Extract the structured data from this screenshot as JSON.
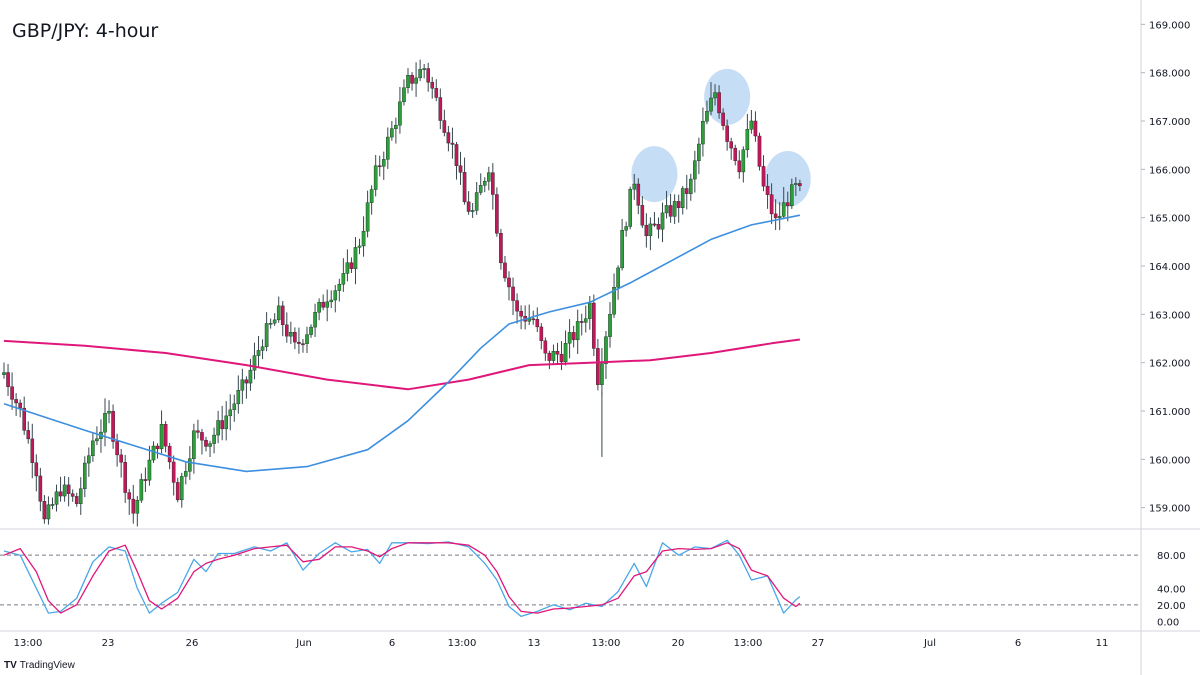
{
  "title": "GBP/JPY: 4-hour",
  "brand": {
    "logo": "TV",
    "name": "TradingView"
  },
  "colors": {
    "up": "#26a69a",
    "upBody": "#2e9e3c",
    "down": "#c2185b",
    "wick": "#37474f",
    "sma_fast": "#3d8fe0",
    "sma_slow": "#e0177a",
    "stoch_k": "#4aa8e8",
    "stoch_d": "#e0177a",
    "highlight": "#bcd7f5",
    "grid": "#e0e3eb"
  },
  "chart_data": [
    {
      "type": "candlestick",
      "title": "GBP/JPY: 4-hour",
      "ylim": [
        158.6,
        169.4
      ],
      "y_ticks": [
        159.0,
        160.0,
        161.0,
        162.0,
        163.0,
        164.0,
        165.0,
        166.0,
        167.0,
        168.0,
        169.0
      ],
      "y_tick_labels": [
        "159.000",
        "160.000",
        "161.000",
        "162.000",
        "163.000",
        "164.000",
        "165.000",
        "166.000",
        "167.000",
        "168.000",
        "169.000"
      ],
      "x_tick_labels": [
        "13:00",
        "23",
        "26",
        "Jun",
        "6",
        "13:00",
        "13",
        "13:00",
        "20",
        "13:00",
        "27",
        "Jul",
        "6",
        "11"
      ],
      "close_anchors": [
        [
          0,
          161.8
        ],
        [
          4,
          161.0
        ],
        [
          8,
          159.8
        ],
        [
          10,
          158.7
        ],
        [
          14,
          159.4
        ],
        [
          18,
          159.1
        ],
        [
          22,
          160.4
        ],
        [
          26,
          160.9
        ],
        [
          30,
          159.5
        ],
        [
          32,
          158.9
        ],
        [
          35,
          159.7
        ],
        [
          39,
          160.6
        ],
        [
          43,
          159.3
        ],
        [
          47,
          160.5
        ],
        [
          51,
          160.4
        ],
        [
          55,
          160.9
        ],
        [
          60,
          161.6
        ],
        [
          64,
          162.5
        ],
        [
          68,
          163.0
        ],
        [
          72,
          162.3
        ],
        [
          76,
          162.8
        ],
        [
          80,
          163.4
        ],
        [
          84,
          163.7
        ],
        [
          88,
          164.5
        ],
        [
          92,
          165.9
        ],
        [
          96,
          166.8
        ],
        [
          100,
          167.8
        ],
        [
          104,
          168.1
        ],
        [
          108,
          167.2
        ],
        [
          112,
          166.2
        ],
        [
          114,
          165.3
        ],
        [
          116,
          165.1
        ],
        [
          120,
          166.1
        ],
        [
          123,
          164.2
        ],
        [
          127,
          163.0
        ],
        [
          131,
          162.9
        ],
        [
          134,
          162.1
        ],
        [
          138,
          162.2
        ],
        [
          142,
          162.7
        ],
        [
          145,
          163.2
        ],
        [
          147,
          161.7
        ],
        [
          150,
          163.1
        ],
        [
          153,
          164.6
        ],
        [
          156,
          165.8
        ],
        [
          159,
          164.6
        ],
        [
          163,
          165.0
        ],
        [
          167,
          165.3
        ],
        [
          170,
          165.7
        ],
        [
          173,
          166.9
        ],
        [
          176,
          167.6
        ],
        [
          179,
          166.7
        ],
        [
          182,
          166.1
        ],
        [
          185,
          167.0
        ],
        [
          188,
          165.6
        ],
        [
          191,
          164.9
        ],
        [
          194,
          165.4
        ],
        [
          196,
          165.6
        ],
        [
          197,
          165.5
        ]
      ],
      "sma_fast": [
        [
          0,
          161.15
        ],
        [
          20,
          160.6
        ],
        [
          45,
          159.95
        ],
        [
          60,
          159.75
        ],
        [
          75,
          159.85
        ],
        [
          90,
          160.2
        ],
        [
          100,
          160.8
        ],
        [
          110,
          161.6
        ],
        [
          118,
          162.3
        ],
        [
          125,
          162.8
        ],
        [
          135,
          163.05
        ],
        [
          145,
          163.25
        ],
        [
          155,
          163.65
        ],
        [
          165,
          164.1
        ],
        [
          175,
          164.55
        ],
        [
          185,
          164.85
        ],
        [
          197,
          165.05
        ]
      ],
      "sma_slow": [
        [
          0,
          162.45
        ],
        [
          20,
          162.35
        ],
        [
          40,
          162.2
        ],
        [
          60,
          161.95
        ],
        [
          80,
          161.65
        ],
        [
          100,
          161.45
        ],
        [
          115,
          161.65
        ],
        [
          130,
          161.95
        ],
        [
          145,
          162.0
        ],
        [
          160,
          162.05
        ],
        [
          175,
          162.2
        ],
        [
          190,
          162.4
        ],
        [
          197,
          162.48
        ]
      ],
      "highlight_points": [
        {
          "x": 161,
          "y": 165.9
        },
        {
          "x": 179,
          "y": 167.5
        },
        {
          "x": 194,
          "y": 165.8
        }
      ]
    },
    {
      "type": "line",
      "name": "stochastic",
      "ylim": [
        -8,
        108
      ],
      "y_tick_labels": [
        "80.00",
        "40.00",
        "20.00",
        "0.00"
      ],
      "levels": [
        80,
        20
      ],
      "series": [
        {
          "key": "K",
          "color": "#4aa8e8",
          "values": [
            [
              0,
              85
            ],
            [
              4,
              80
            ],
            [
              8,
              40
            ],
            [
              11,
              10
            ],
            [
              14,
              12
            ],
            [
              18,
              28
            ],
            [
              22,
              72
            ],
            [
              26,
              90
            ],
            [
              30,
              85
            ],
            [
              33,
              40
            ],
            [
              36,
              10
            ],
            [
              39,
              22
            ],
            [
              43,
              35
            ],
            [
              47,
              75
            ],
            [
              50,
              60
            ],
            [
              53,
              82
            ],
            [
              57,
              82
            ],
            [
              62,
              90
            ],
            [
              66,
              85
            ],
            [
              70,
              95
            ],
            [
              74,
              62
            ],
            [
              78,
              82
            ],
            [
              82,
              95
            ],
            [
              86,
              84
            ],
            [
              90,
              87
            ],
            [
              93,
              70
            ],
            [
              96,
              95
            ],
            [
              100,
              95
            ],
            [
              105,
              94
            ],
            [
              110,
              96
            ],
            [
              115,
              90
            ],
            [
              119,
              70
            ],
            [
              122,
              50
            ],
            [
              125,
              18
            ],
            [
              128,
              6
            ],
            [
              132,
              12
            ],
            [
              136,
              20
            ],
            [
              140,
              14
            ],
            [
              144,
              22
            ],
            [
              148,
              18
            ],
            [
              152,
              36
            ],
            [
              156,
              70
            ],
            [
              159,
              42
            ],
            [
              163,
              95
            ],
            [
              167,
              80
            ],
            [
              171,
              90
            ],
            [
              175,
              88
            ],
            [
              179,
              98
            ],
            [
              182,
              80
            ],
            [
              185,
              50
            ],
            [
              189,
              55
            ],
            [
              193,
              10
            ],
            [
              196,
              26
            ],
            [
              197,
              30
            ]
          ]
        },
        {
          "key": "D",
          "color": "#e0177a",
          "values": [
            [
              0,
              80
            ],
            [
              4,
              88
            ],
            [
              8,
              60
            ],
            [
              11,
              25
            ],
            [
              14,
              10
            ],
            [
              18,
              20
            ],
            [
              22,
              55
            ],
            [
              26,
              85
            ],
            [
              30,
              92
            ],
            [
              33,
              60
            ],
            [
              36,
              25
            ],
            [
              39,
              15
            ],
            [
              43,
              28
            ],
            [
              47,
              60
            ],
            [
              50,
              70
            ],
            [
              53,
              75
            ],
            [
              57,
              80
            ],
            [
              62,
              88
            ],
            [
              66,
              90
            ],
            [
              70,
              92
            ],
            [
              74,
              72
            ],
            [
              78,
              75
            ],
            [
              82,
              90
            ],
            [
              86,
              90
            ],
            [
              90,
              85
            ],
            [
              93,
              78
            ],
            [
              96,
              88
            ],
            [
              100,
              95
            ],
            [
              105,
              95
            ],
            [
              110,
              95
            ],
            [
              115,
              92
            ],
            [
              119,
              80
            ],
            [
              122,
              60
            ],
            [
              125,
              30
            ],
            [
              128,
              12
            ],
            [
              132,
              10
            ],
            [
              136,
              15
            ],
            [
              140,
              16
            ],
            [
              144,
              18
            ],
            [
              148,
              20
            ],
            [
              152,
              28
            ],
            [
              156,
              55
            ],
            [
              159,
              60
            ],
            [
              163,
              85
            ],
            [
              167,
              88
            ],
            [
              171,
              87
            ],
            [
              175,
              88
            ],
            [
              179,
              95
            ],
            [
              182,
              88
            ],
            [
              185,
              62
            ],
            [
              189,
              55
            ],
            [
              193,
              28
            ],
            [
              196,
              18
            ],
            [
              197,
              22
            ]
          ]
        }
      ]
    }
  ]
}
